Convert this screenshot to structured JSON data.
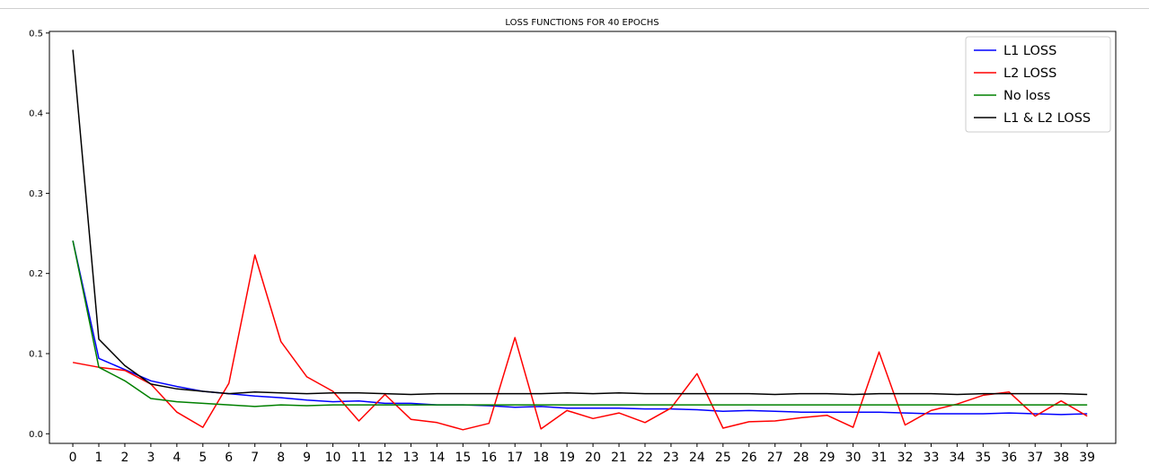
{
  "chart_data": {
    "type": "line",
    "title": "LOSS FUNCTIONS FOR 40 EPOCHS",
    "xlabel": "",
    "ylabel": "",
    "x": [
      0,
      1,
      2,
      3,
      4,
      5,
      6,
      7,
      8,
      9,
      10,
      11,
      12,
      13,
      14,
      15,
      16,
      17,
      18,
      19,
      20,
      21,
      22,
      23,
      24,
      25,
      26,
      27,
      28,
      29,
      30,
      31,
      32,
      33,
      34,
      35,
      36,
      37,
      38,
      39
    ],
    "x_ticks": [
      "0",
      "1",
      "2",
      "3",
      "4",
      "5",
      "6",
      "7",
      "8",
      "9",
      "10",
      "11",
      "12",
      "13",
      "14",
      "15",
      "16",
      "17",
      "18",
      "19",
      "20",
      "21",
      "22",
      "23",
      "24",
      "25",
      "26",
      "27",
      "28",
      "29",
      "30",
      "31",
      "32",
      "33",
      "34",
      "35",
      "36",
      "37",
      "38",
      "39"
    ],
    "y_ticks": [
      "0.0",
      "0.1",
      "0.2",
      "0.3",
      "0.4",
      "0.5"
    ],
    "xlim": [
      -0.9,
      40.1
    ],
    "ylim": [
      -0.012,
      0.502
    ],
    "grid": false,
    "legend_position": "top-right",
    "series": [
      {
        "name": "L1 LOSS",
        "color": "#0000ff",
        "values": [
          0.241,
          0.094,
          0.08,
          0.066,
          0.059,
          0.053,
          0.05,
          0.047,
          0.045,
          0.042,
          0.04,
          0.041,
          0.038,
          0.038,
          0.036,
          0.036,
          0.035,
          0.033,
          0.034,
          0.032,
          0.032,
          0.032,
          0.031,
          0.031,
          0.03,
          0.028,
          0.029,
          0.028,
          0.027,
          0.027,
          0.027,
          0.027,
          0.026,
          0.025,
          0.025,
          0.025,
          0.026,
          0.025,
          0.024,
          0.025
        ]
      },
      {
        "name": "L2 LOSS",
        "color": "#ff0000",
        "values": [
          0.089,
          0.083,
          0.079,
          0.062,
          0.027,
          0.008,
          0.063,
          0.223,
          0.115,
          0.071,
          0.053,
          0.016,
          0.049,
          0.018,
          0.014,
          0.005,
          0.013,
          0.12,
          0.006,
          0.029,
          0.019,
          0.026,
          0.014,
          0.032,
          0.075,
          0.007,
          0.015,
          0.016,
          0.02,
          0.023,
          0.008,
          0.102,
          0.011,
          0.029,
          0.037,
          0.048,
          0.052,
          0.022,
          0.041,
          0.022
        ]
      },
      {
        "name": "No loss",
        "color": "#008000",
        "values": [
          0.241,
          0.083,
          0.066,
          0.044,
          0.04,
          0.038,
          0.036,
          0.034,
          0.036,
          0.035,
          0.036,
          0.036,
          0.036,
          0.036,
          0.036,
          0.036,
          0.036,
          0.036,
          0.036,
          0.036,
          0.036,
          0.036,
          0.036,
          0.036,
          0.036,
          0.036,
          0.036,
          0.036,
          0.036,
          0.036,
          0.036,
          0.036,
          0.036,
          0.036,
          0.036,
          0.036,
          0.036,
          0.036,
          0.036,
          0.036
        ]
      },
      {
        "name": "L1 & L2 LOSS",
        "color": "#000000",
        "values": [
          0.479,
          0.118,
          0.085,
          0.062,
          0.056,
          0.053,
          0.05,
          0.052,
          0.051,
          0.05,
          0.051,
          0.051,
          0.05,
          0.049,
          0.05,
          0.05,
          0.05,
          0.05,
          0.05,
          0.051,
          0.05,
          0.051,
          0.05,
          0.05,
          0.05,
          0.05,
          0.05,
          0.049,
          0.05,
          0.05,
          0.049,
          0.05,
          0.05,
          0.05,
          0.049,
          0.05,
          0.05,
          0.05,
          0.05,
          0.049
        ]
      }
    ]
  }
}
